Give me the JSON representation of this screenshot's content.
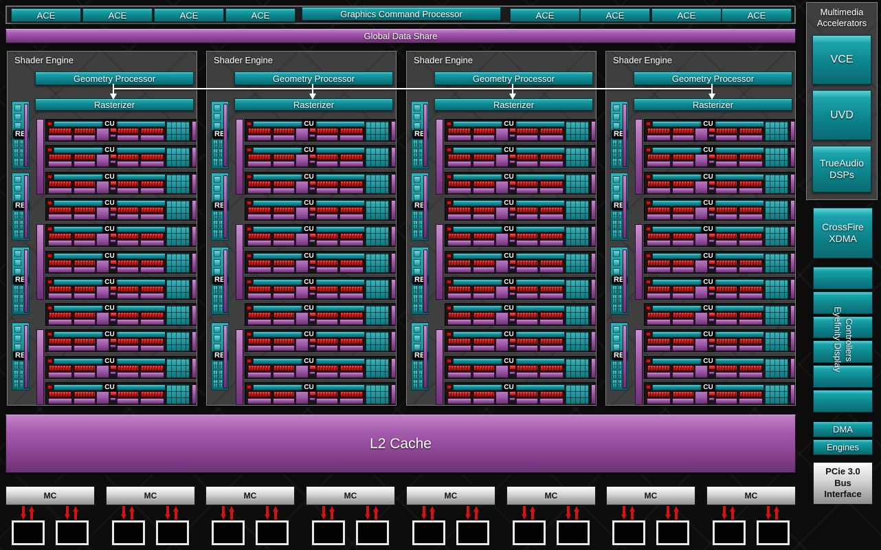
{
  "header": {
    "ace_label": "ACE",
    "left_ace_count": 4,
    "right_ace_count": 4,
    "command_processor_label": "Graphics Command Processor"
  },
  "global_data_share": {
    "label": "Global Data Share"
  },
  "shader_engines": {
    "count": 4,
    "title": "Shader Engine",
    "geometry_processor_label": "Geometry Processor",
    "rasterizer_label": "Rasterizer",
    "rb": {
      "label": "RB",
      "count_per_engine": 4
    },
    "cu": {
      "label": "CU",
      "count_per_engine": 11
    }
  },
  "sidebar": {
    "multimedia": {
      "title": "Multimedia\nAccelerators",
      "vce_label": "VCE",
      "uvd_label": "UVD",
      "trueaudio_label": "TrueAudio\nDSPs"
    },
    "crossfire_label": "CrossFire\nXDMA",
    "eyefinity_label": "Eyefinity Display\nControllers",
    "eyefinity_slat_count": 6,
    "dma_labels": [
      "DMA",
      "Engines"
    ],
    "pcie_label": "PCie 3.0\nBus\nInterface"
  },
  "memory": {
    "l2_label": "L2 Cache",
    "mc_label": "MC",
    "mc_count": 8,
    "chips_per_mc": 2
  },
  "colors": {
    "teal_light": "#5bd2d7",
    "teal_dark": "#0a6a72",
    "purple_light": "#c183c8",
    "purple_dark": "#6d3175",
    "red": "#dd1111",
    "arrow_red": "#d31212",
    "panel_gray": "#3f3f3f",
    "background": "#0d0d0d",
    "mc_gray": "#d8d8d8"
  }
}
